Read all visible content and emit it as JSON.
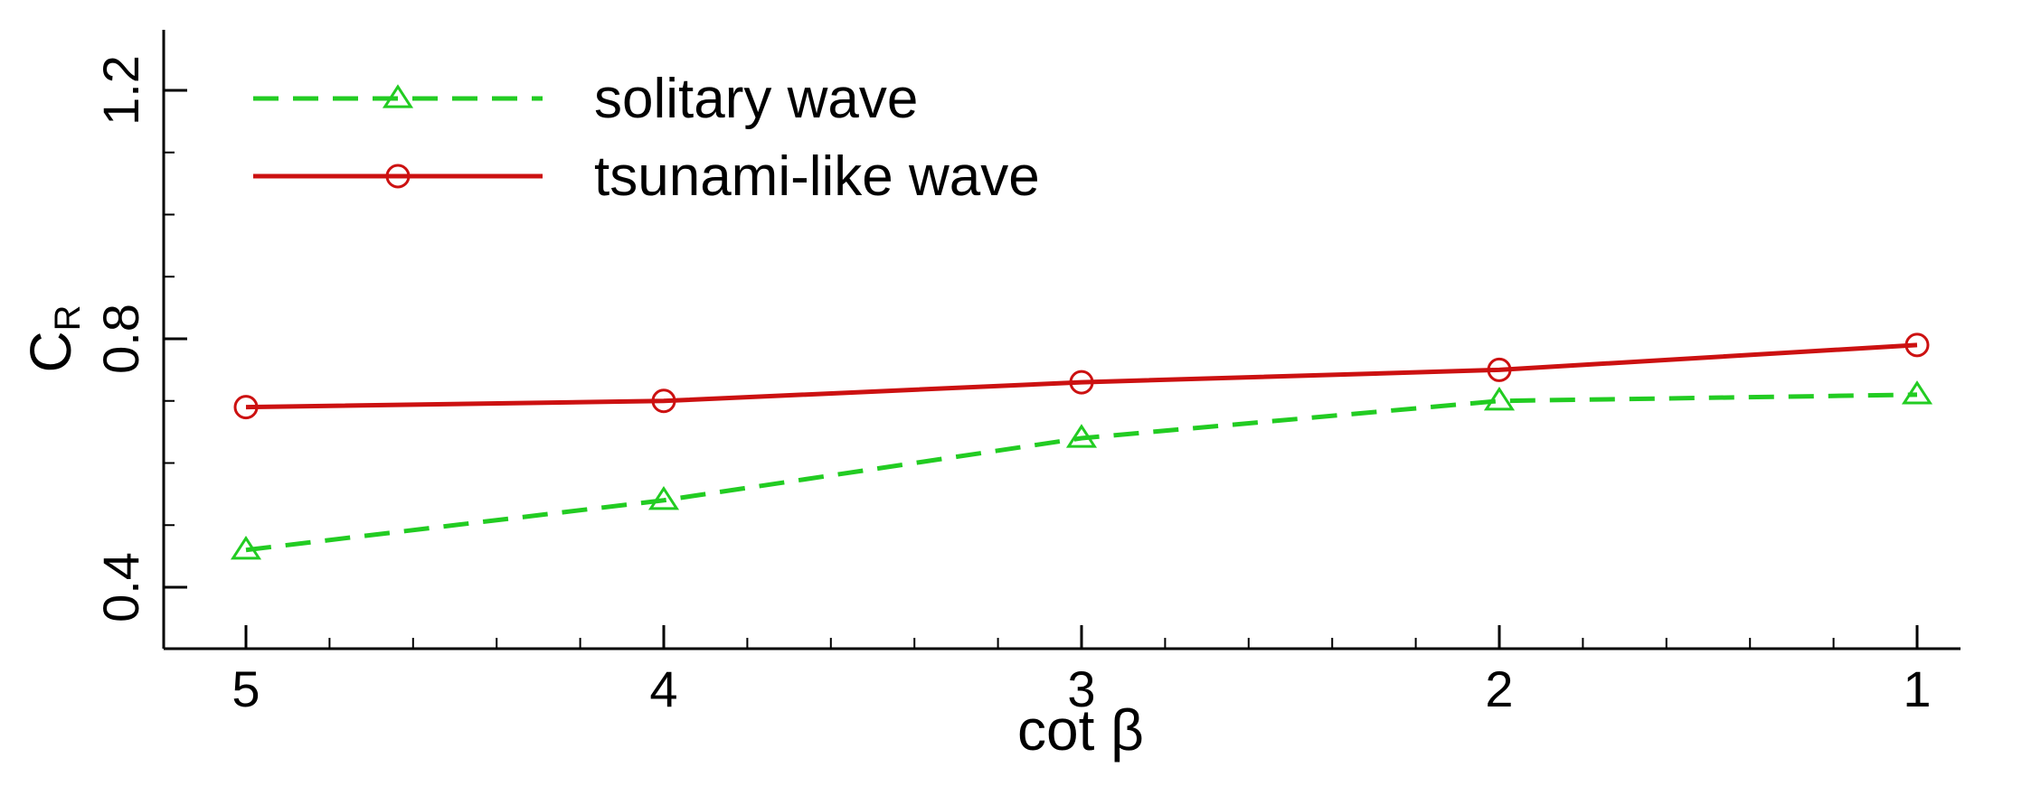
{
  "chart_data": {
    "type": "line",
    "xlabel": "cot β",
    "ylabel_main": "C",
    "ylabel_sub": "R",
    "x_reversed": true,
    "xlim": [
      5.2,
      0.9
    ],
    "ylim": [
      0.3,
      1.3
    ],
    "x_ticks": [
      5,
      4,
      3,
      2,
      1
    ],
    "y_ticks": [
      0.4,
      0.8,
      1.2
    ],
    "grid": false,
    "legend_position": "top-left",
    "series": [
      {
        "name": "solitary wave",
        "color": "#22cc22",
        "line_style": "dashed",
        "marker": "triangle",
        "x": [
          5,
          4,
          3,
          2,
          1
        ],
        "y": [
          0.46,
          0.54,
          0.64,
          0.7,
          0.71
        ]
      },
      {
        "name": "tsunami-like wave",
        "color": "#cc1111",
        "line_style": "solid",
        "marker": "circle",
        "x": [
          5,
          4,
          3,
          2,
          1
        ],
        "y": [
          0.69,
          0.7,
          0.73,
          0.75,
          0.79
        ]
      }
    ]
  }
}
